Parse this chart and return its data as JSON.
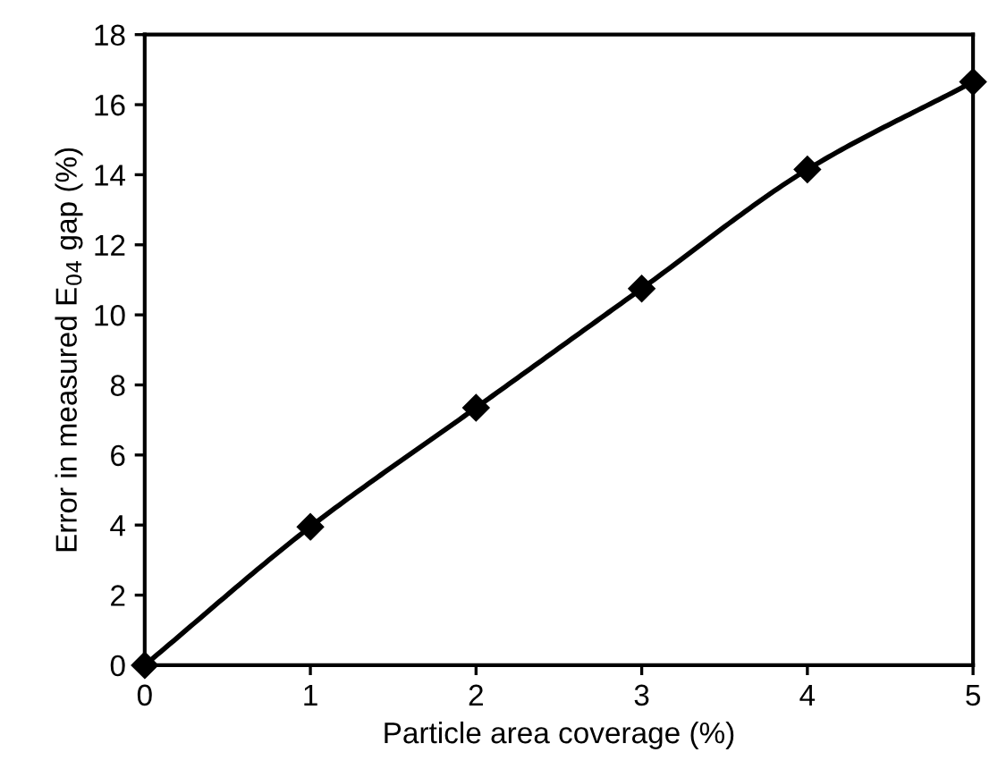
{
  "chart_data": {
    "type": "line",
    "xlabel": "Particle area coverage (%)",
    "ylabel": "Error in measured E$_{04}$ gap (%)",
    "x": [
      0,
      1,
      2,
      3,
      4,
      5
    ],
    "series": [
      {
        "color": "#000000",
        "values": [
          0,
          3.95,
          7.35,
          10.75,
          14.15,
          16.65
        ]
      }
    ],
    "xlim": [
      0,
      5
    ],
    "xticks": [
      0,
      1,
      2,
      3,
      4,
      5
    ],
    "ylim": [
      0,
      18
    ],
    "yticks": [
      0,
      2,
      4,
      6,
      8,
      10,
      12,
      14,
      16,
      18
    ],
    "marker": "diamond",
    "line_style": "solid",
    "grid": false,
    "legend": false
  }
}
